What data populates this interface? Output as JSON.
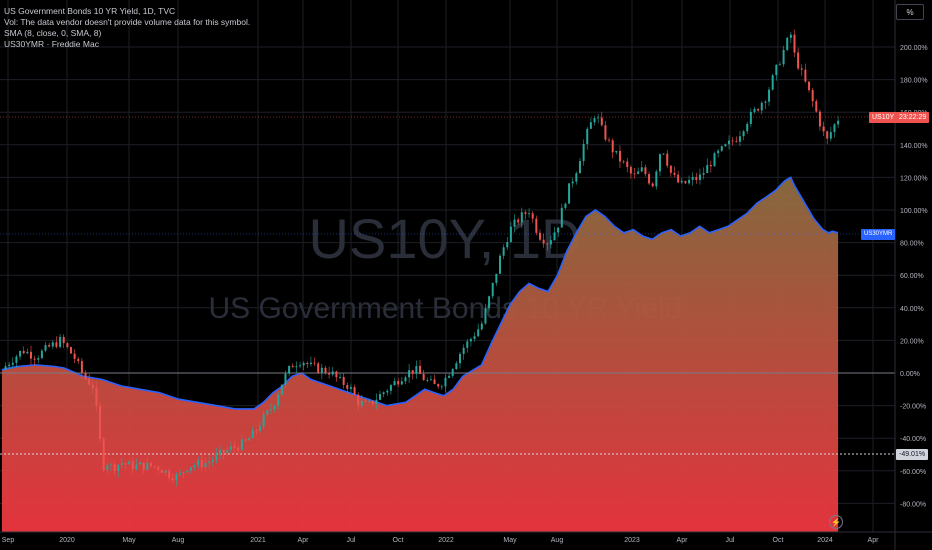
{
  "legend": {
    "title": "US Government Bonds 10 YR Yield, 1D, TVC",
    "vol": "Vol: The data vendor doesn't provide volume data for this symbol.",
    "sma": "SMA (8, close, 0, SMA, 8)",
    "compare": "US30YMR · Freddie Mac"
  },
  "watermark": {
    "symbol": "US10Y, 1D",
    "name": "US Government Bonds 10 YR Yield"
  },
  "unit_button": "%",
  "tags": {
    "us10y_label": "US10Y",
    "us10y_time": "23:22:29",
    "us30ymr_label": "US30YMR",
    "crosshair_value": "-49.01%"
  },
  "colors": {
    "candle_up": "#26a69a",
    "candle_down": "#ef5350",
    "area_line": "#2962ff",
    "area_top": "#8c6d40",
    "area_bottom": "#ef3640",
    "zero_line": "#787b86"
  },
  "chart_data": {
    "type": "line",
    "yaxis": {
      "ticks": [
        "200.00%",
        "180.00%",
        "160.00%",
        "140.00%",
        "120.00%",
        "100.00%",
        "80.00%",
        "60.00%",
        "40.00%",
        "20.00%",
        "0.00%",
        "-20.00%",
        "-40.00%",
        "-60.00%",
        "-80.00%"
      ],
      "ylim": [
        -95,
        213
      ],
      "unit": "%"
    },
    "xaxis": {
      "ticks": [
        "Sep",
        "2020",
        "May",
        "Aug",
        "2021",
        "Apr",
        "Jul",
        "Oct",
        "2022",
        "May",
        "Aug",
        "2023",
        "Apr",
        "Jul",
        "Oct",
        "2024",
        "Apr"
      ]
    },
    "series": [
      {
        "name": "US10Y",
        "style": "candles",
        "points": [
          [
            2019.67,
            2
          ],
          [
            2019.72,
            8
          ],
          [
            2019.78,
            14
          ],
          [
            2019.85,
            10
          ],
          [
            2019.92,
            16
          ],
          [
            2019.98,
            20
          ],
          [
            2020.05,
            10
          ],
          [
            2020.1,
            -2
          ],
          [
            2020.15,
            -8
          ],
          [
            2020.18,
            -32
          ],
          [
            2020.2,
            -58
          ],
          [
            2020.22,
            -54
          ],
          [
            2020.25,
            -58
          ],
          [
            2020.3,
            -55
          ],
          [
            2020.35,
            -57
          ],
          [
            2020.45,
            -57
          ],
          [
            2020.5,
            -58
          ],
          [
            2020.55,
            -62
          ],
          [
            2020.6,
            -64
          ],
          [
            2020.65,
            -57
          ],
          [
            2020.75,
            -55
          ],
          [
            2020.85,
            -48
          ],
          [
            2020.95,
            -43
          ],
          [
            2021.0,
            -37
          ],
          [
            2021.05,
            -28
          ],
          [
            2021.1,
            -20
          ],
          [
            2021.15,
            -5
          ],
          [
            2021.2,
            5
          ],
          [
            2021.25,
            8
          ],
          [
            2021.3,
            4
          ],
          [
            2021.35,
            2
          ],
          [
            2021.4,
            1
          ],
          [
            2021.45,
            -5
          ],
          [
            2021.5,
            -8
          ],
          [
            2021.55,
            -18
          ],
          [
            2021.6,
            -20
          ],
          [
            2021.65,
            -15
          ],
          [
            2021.7,
            -10
          ],
          [
            2021.75,
            -5
          ],
          [
            2021.8,
            0
          ],
          [
            2021.85,
            2
          ],
          [
            2021.9,
            -4
          ],
          [
            2021.95,
            -8
          ],
          [
            2022.0,
            -5
          ],
          [
            2022.05,
            5
          ],
          [
            2022.1,
            15
          ],
          [
            2022.15,
            22
          ],
          [
            2022.2,
            30
          ],
          [
            2022.25,
            50
          ],
          [
            2022.3,
            72
          ],
          [
            2022.35,
            88
          ],
          [
            2022.4,
            95
          ],
          [
            2022.45,
            100
          ],
          [
            2022.5,
            85
          ],
          [
            2022.55,
            80
          ],
          [
            2022.6,
            90
          ],
          [
            2022.65,
            110
          ],
          [
            2022.7,
            125
          ],
          [
            2022.75,
            145
          ],
          [
            2022.8,
            160
          ],
          [
            2022.83,
            150
          ],
          [
            2022.9,
            135
          ],
          [
            2022.95,
            128
          ],
          [
            2023.0,
            120
          ],
          [
            2023.05,
            125
          ],
          [
            2023.1,
            115
          ],
          [
            2023.15,
            140
          ],
          [
            2023.2,
            122
          ],
          [
            2023.25,
            115
          ],
          [
            2023.3,
            118
          ],
          [
            2023.35,
            120
          ],
          [
            2023.4,
            128
          ],
          [
            2023.45,
            135
          ],
          [
            2023.5,
            140
          ],
          [
            2023.55,
            145
          ],
          [
            2023.6,
            155
          ],
          [
            2023.65,
            162
          ],
          [
            2023.7,
            170
          ],
          [
            2023.75,
            185
          ],
          [
            2023.8,
            200
          ],
          [
            2023.83,
            208
          ],
          [
            2023.85,
            195
          ],
          [
            2023.9,
            180
          ],
          [
            2023.95,
            165
          ],
          [
            2024.0,
            148
          ],
          [
            2024.02,
            142
          ],
          [
            2024.05,
            150
          ],
          [
            2024.08,
            156
          ]
        ]
      },
      {
        "name": "US30YMR",
        "style": "area",
        "points": [
          [
            2019.67,
            2
          ],
          [
            2019.75,
            4
          ],
          [
            2019.85,
            5
          ],
          [
            2019.95,
            4
          ],
          [
            2020.0,
            3
          ],
          [
            2020.1,
            -2
          ],
          [
            2020.2,
            -4
          ],
          [
            2020.3,
            -8
          ],
          [
            2020.4,
            -10
          ],
          [
            2020.5,
            -12
          ],
          [
            2020.6,
            -16
          ],
          [
            2020.7,
            -18
          ],
          [
            2020.8,
            -20
          ],
          [
            2020.9,
            -22
          ],
          [
            2021.0,
            -22
          ],
          [
            2021.05,
            -18
          ],
          [
            2021.1,
            -12
          ],
          [
            2021.15,
            -8
          ],
          [
            2021.2,
            -2
          ],
          [
            2021.25,
            0
          ],
          [
            2021.3,
            -4
          ],
          [
            2021.4,
            -8
          ],
          [
            2021.5,
            -12
          ],
          [
            2021.6,
            -16
          ],
          [
            2021.7,
            -20
          ],
          [
            2021.8,
            -18
          ],
          [
            2021.85,
            -14
          ],
          [
            2021.9,
            -10
          ],
          [
            2021.95,
            -12
          ],
          [
            2022.0,
            -14
          ],
          [
            2022.05,
            -10
          ],
          [
            2022.1,
            -2
          ],
          [
            2022.2,
            5
          ],
          [
            2022.25,
            18
          ],
          [
            2022.3,
            30
          ],
          [
            2022.35,
            42
          ],
          [
            2022.4,
            50
          ],
          [
            2022.45,
            55
          ],
          [
            2022.5,
            52
          ],
          [
            2022.55,
            50
          ],
          [
            2022.6,
            60
          ],
          [
            2022.65,
            75
          ],
          [
            2022.7,
            86
          ],
          [
            2022.75,
            96
          ],
          [
            2022.8,
            100
          ],
          [
            2022.85,
            96
          ],
          [
            2022.9,
            90
          ],
          [
            2022.95,
            86
          ],
          [
            2023.0,
            88
          ],
          [
            2023.05,
            84
          ],
          [
            2023.1,
            82
          ],
          [
            2023.15,
            86
          ],
          [
            2023.2,
            88
          ],
          [
            2023.25,
            84
          ],
          [
            2023.3,
            86
          ],
          [
            2023.35,
            90
          ],
          [
            2023.4,
            86
          ],
          [
            2023.45,
            88
          ],
          [
            2023.5,
            90
          ],
          [
            2023.55,
            94
          ],
          [
            2023.6,
            98
          ],
          [
            2023.65,
            104
          ],
          [
            2023.7,
            108
          ],
          [
            2023.75,
            112
          ],
          [
            2023.8,
            118
          ],
          [
            2023.83,
            120
          ],
          [
            2023.85,
            115
          ],
          [
            2023.9,
            105
          ],
          [
            2023.95,
            95
          ],
          [
            2024.0,
            88
          ],
          [
            2024.03,
            86
          ],
          [
            2024.05,
            87
          ],
          [
            2024.08,
            86
          ]
        ]
      }
    ],
    "xlim": [
      2019.66,
      2024.38
    ],
    "grid": true
  }
}
